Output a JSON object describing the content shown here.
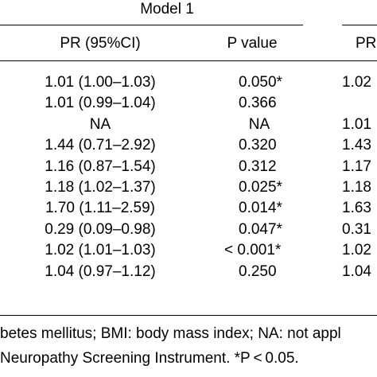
{
  "table": {
    "model1_header": "Model 1",
    "col_pr": "PR (95%CI)",
    "col_p": "P value",
    "col_pr_next": "PR",
    "rows": [
      {
        "pr": "1.01 (1.00–1.03)",
        "p": "0.050*",
        "next": "1.02"
      },
      {
        "pr": "1.01 (0.99–1.04)",
        "p": "0.366",
        "next": ""
      },
      {
        "pr": "NA",
        "p": "NA",
        "next": "1.01"
      },
      {
        "pr": "1.44 (0.71–2.92)",
        "p": "0.320",
        "next": "1.43"
      },
      {
        "pr": "1.16 (0.87–1.54)",
        "p": "0.312",
        "next": "1.17"
      },
      {
        "pr": "1.18 (1.02–1.37)",
        "p": "0.025*",
        "next": "1.18"
      },
      {
        "pr": "1.70 (1.11–2.59)",
        "p": "0.014*",
        "next": "1.63"
      },
      {
        "pr": "0.29 (0.09–0.98)",
        "p": "0.047*",
        "next": "0.31"
      },
      {
        "pr": "1.02 (1.01–1.03)",
        "p": "< 0.001*",
        "next": "1.02"
      },
      {
        "pr": "1.04 (0.97–1.12)",
        "p": "0.250",
        "next": "1.04"
      }
    ]
  },
  "footnote": {
    "line1": "betes mellitus; BMI: body mass index; NA: not appl",
    "line2": "Neuropathy Screening Instrument. *P < 0.05."
  }
}
